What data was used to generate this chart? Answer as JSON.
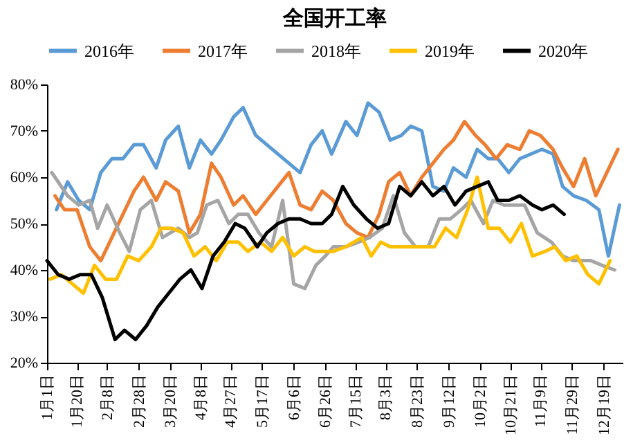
{
  "chart_data": {
    "type": "line",
    "title": "全国开工率",
    "legend": "top",
    "xlim": [
      "--01-01",
      "--12-31"
    ],
    "xticks": [
      {
        "value": "--01-01",
        "label": "1月1日"
      },
      {
        "value": "--01-20",
        "label": "1月20日"
      },
      {
        "value": "--02-08",
        "label": "2月8日"
      },
      {
        "value": "--02-28",
        "label": "2月28日"
      },
      {
        "value": "--03-20",
        "label": "3月20日"
      },
      {
        "value": "--04-08",
        "label": "4月8日"
      },
      {
        "value": "--04-27",
        "label": "4月27日"
      },
      {
        "value": "--05-17",
        "label": "5月17日"
      },
      {
        "value": "--06-06",
        "label": "6月6日"
      },
      {
        "value": "--06-26",
        "label": "6月26日"
      },
      {
        "value": "--07-15",
        "label": "7月15日"
      },
      {
        "value": "--08-03",
        "label": "8月3日"
      },
      {
        "value": "--08-23",
        "label": "8月23日"
      },
      {
        "value": "--09-12",
        "label": "9月12日"
      },
      {
        "value": "--10-02",
        "label": "10月2日"
      },
      {
        "value": "--10-21",
        "label": "10月21日"
      },
      {
        "value": "--11-09",
        "label": "11月9日"
      },
      {
        "value": "--11-29",
        "label": "11月29日"
      },
      {
        "value": "--12-19",
        "label": "12月19日"
      }
    ],
    "ylim": [
      20,
      80
    ],
    "yticks": [
      {
        "value": 20,
        "label": "20%"
      },
      {
        "value": 30,
        "label": "30%"
      },
      {
        "value": 40,
        "label": "40%"
      },
      {
        "value": 50,
        "label": "50%"
      },
      {
        "value": 60,
        "label": "60%"
      },
      {
        "value": 70,
        "label": "70%"
      },
      {
        "value": 80,
        "label": "80%"
      }
    ],
    "series": [
      {
        "name": "2016年",
        "color": "#5b9bd5",
        "x": [
          "--01-07",
          "--01-14",
          "--01-21",
          "--01-28",
          "--02-04",
          "--02-11",
          "--02-18",
          "--02-25",
          "--03-03",
          "--03-11",
          "--03-17",
          "--03-25",
          "--04-01",
          "--04-08",
          "--04-15",
          "--04-21",
          "--04-29",
          "--05-05",
          "--05-13",
          "--06-10",
          "--06-17",
          "--06-24",
          "--06-30",
          "--07-09",
          "--07-16",
          "--07-23",
          "--07-30",
          "--08-06",
          "--08-13",
          "--08-19",
          "--08-26",
          "--09-02",
          "--09-09",
          "--09-15",
          "--09-23",
          "--09-30",
          "--10-07",
          "--10-13",
          "--10-20",
          "--10-27",
          "--11-03",
          "--11-10",
          "--11-17",
          "--11-23",
          "--11-30",
          "--12-08",
          "--12-16",
          "--12-22",
          "--12-29"
        ],
        "values": [
          53,
          59,
          55,
          53,
          61,
          64,
          64,
          67,
          67,
          62,
          68,
          71,
          62,
          68,
          65,
          68,
          73,
          75,
          69,
          61,
          67,
          70,
          65,
          72,
          69,
          76,
          74,
          68,
          69,
          71,
          70,
          58,
          57,
          62,
          60,
          66,
          64,
          64,
          61,
          64,
          65,
          66,
          65,
          58,
          56,
          55,
          53,
          43,
          54
        ]
      },
      {
        "name": "2017年",
        "color": "#ed7d31",
        "x": [
          "--01-06",
          "--01-12",
          "--01-20",
          "--01-28",
          "--02-04",
          "--02-11",
          "--02-18",
          "--02-25",
          "--03-03",
          "--03-11",
          "--03-17",
          "--03-25",
          "--04-01",
          "--04-08",
          "--04-15",
          "--04-21",
          "--04-29",
          "--05-05",
          "--05-13",
          "--05-20",
          "--05-27",
          "--06-03",
          "--06-10",
          "--06-17",
          "--06-24",
          "--07-01",
          "--07-09",
          "--07-16",
          "--07-23",
          "--07-30",
          "--08-05",
          "--08-12",
          "--08-19",
          "--08-26",
          "--09-02",
          "--09-09",
          "--09-15",
          "--09-22",
          "--09-29",
          "--10-05",
          "--10-12",
          "--10-19",
          "--10-27",
          "--11-02",
          "--11-09",
          "--11-17",
          "--11-23",
          "--11-30",
          "--12-07",
          "--12-14",
          "--12-28"
        ],
        "values": [
          56,
          53,
          53,
          45,
          42,
          47,
          52,
          57,
          60,
          55,
          59,
          57,
          48,
          52,
          63,
          60,
          54,
          56,
          52,
          55,
          58,
          61,
          54,
          53,
          57,
          55,
          50,
          48,
          47,
          52,
          59,
          61,
          56,
          60,
          63,
          66,
          68,
          72,
          69,
          67,
          64,
          67,
          66,
          70,
          69,
          66,
          62,
          58,
          64,
          56,
          66
        ]
      },
      {
        "name": "2018年",
        "color": "#a5a5a5",
        "x": [
          "--01-04",
          "--01-14",
          "--01-21",
          "--01-28",
          "--02-02",
          "--02-08",
          "--02-16",
          "--02-22",
          "--03-01",
          "--03-08",
          "--03-15",
          "--03-25",
          "--04-01",
          "--04-06",
          "--04-12",
          "--04-19",
          "--04-26",
          "--05-02",
          "--05-08",
          "--05-15",
          "--05-23",
          "--05-30",
          "--06-06",
          "--06-13",
          "--06-20",
          "--06-26",
          "--07-01",
          "--07-09",
          "--07-17",
          "--07-24",
          "--08-01",
          "--08-08",
          "--08-15",
          "--08-22",
          "--08-30",
          "--09-06",
          "--09-13",
          "--09-20",
          "--09-26",
          "--10-04",
          "--10-10",
          "--10-17",
          "--10-30",
          "--11-07",
          "--11-16",
          "--11-23",
          "--11-30",
          "--12-11",
          "--12-18",
          "--12-26"
        ],
        "values": [
          61,
          56,
          54,
          55,
          49,
          54,
          48,
          44,
          53,
          55,
          47,
          49,
          47,
          48,
          54,
          55,
          50,
          52,
          52,
          48,
          45,
          55,
          37,
          36,
          41,
          43,
          45,
          45,
          46,
          47,
          49,
          56,
          48,
          45,
          45,
          51,
          51,
          53,
          55,
          50,
          55,
          54,
          54,
          48,
          46,
          43,
          42,
          42,
          41,
          40
        ]
      },
      {
        "name": "2019年",
        "color": "#ffc000",
        "x": [
          "--01-03",
          "--01-10",
          "--01-17",
          "--01-24",
          "--01-31",
          "--02-07",
          "--02-14",
          "--02-21",
          "--02-28",
          "--03-08",
          "--03-14",
          "--03-21",
          "--03-28",
          "--04-04",
          "--04-11",
          "--04-18",
          "--04-25",
          "--05-02",
          "--05-08",
          "--05-16",
          "--05-23",
          "--05-30",
          "--06-06",
          "--06-13",
          "--06-19",
          "--06-26",
          "--07-01",
          "--07-09",
          "--07-19",
          "--07-25",
          "--07-31",
          "--08-06",
          "--09-03",
          "--09-10",
          "--09-17",
          "--09-24",
          "--09-30",
          "--10-07",
          "--10-14",
          "--10-21",
          "--10-28",
          "--11-04",
          "--11-12",
          "--11-18",
          "--11-25",
          "--12-02",
          "--12-09",
          "--12-16",
          "--12-23"
        ],
        "values": [
          38,
          39,
          37,
          35,
          41,
          38,
          38,
          43,
          42,
          45,
          49,
          49,
          48,
          43,
          45,
          42,
          46,
          46,
          44,
          46,
          44,
          47,
          43,
          45,
          44,
          44,
          44,
          45,
          47,
          43,
          46,
          45,
          45,
          49,
          47,
          53,
          60,
          49,
          49,
          46,
          50,
          43,
          44,
          45,
          42,
          43,
          39,
          37,
          42
        ]
      },
      {
        "name": "2020年",
        "color": "#000000",
        "x": [
          "--01-01",
          "--01-08",
          "--01-15",
          "--01-22",
          "--01-29",
          "--02-05",
          "--02-13",
          "--02-19",
          "--02-26",
          "--03-05",
          "--03-12",
          "--03-19",
          "--03-26",
          "--04-02",
          "--04-09",
          "--04-16",
          "--04-23",
          "--04-30",
          "--05-06",
          "--05-14",
          "--05-20",
          "--05-27",
          "--06-03",
          "--06-10",
          "--06-17",
          "--06-24",
          "--06-30",
          "--07-07",
          "--07-14",
          "--07-22",
          "--07-29",
          "--08-05",
          "--08-12",
          "--08-19",
          "--08-26",
          "--09-02",
          "--09-09",
          "--09-16",
          "--09-23",
          "--09-30",
          "--10-07",
          "--10-13",
          "--10-20",
          "--10-27",
          "--11-04",
          "--11-10",
          "--11-17",
          "--11-24"
        ],
        "values": [
          42,
          39,
          38,
          39,
          39,
          34,
          25,
          27,
          25,
          28,
          32,
          35,
          38,
          40,
          36,
          43,
          46,
          50,
          49,
          45,
          48,
          50,
          51,
          51,
          50,
          50,
          52,
          58,
          54,
          51,
          49,
          50,
          58,
          56,
          59,
          56,
          58,
          54,
          57,
          58,
          59,
          55,
          55,
          56,
          54,
          53,
          54,
          52
        ]
      }
    ]
  }
}
